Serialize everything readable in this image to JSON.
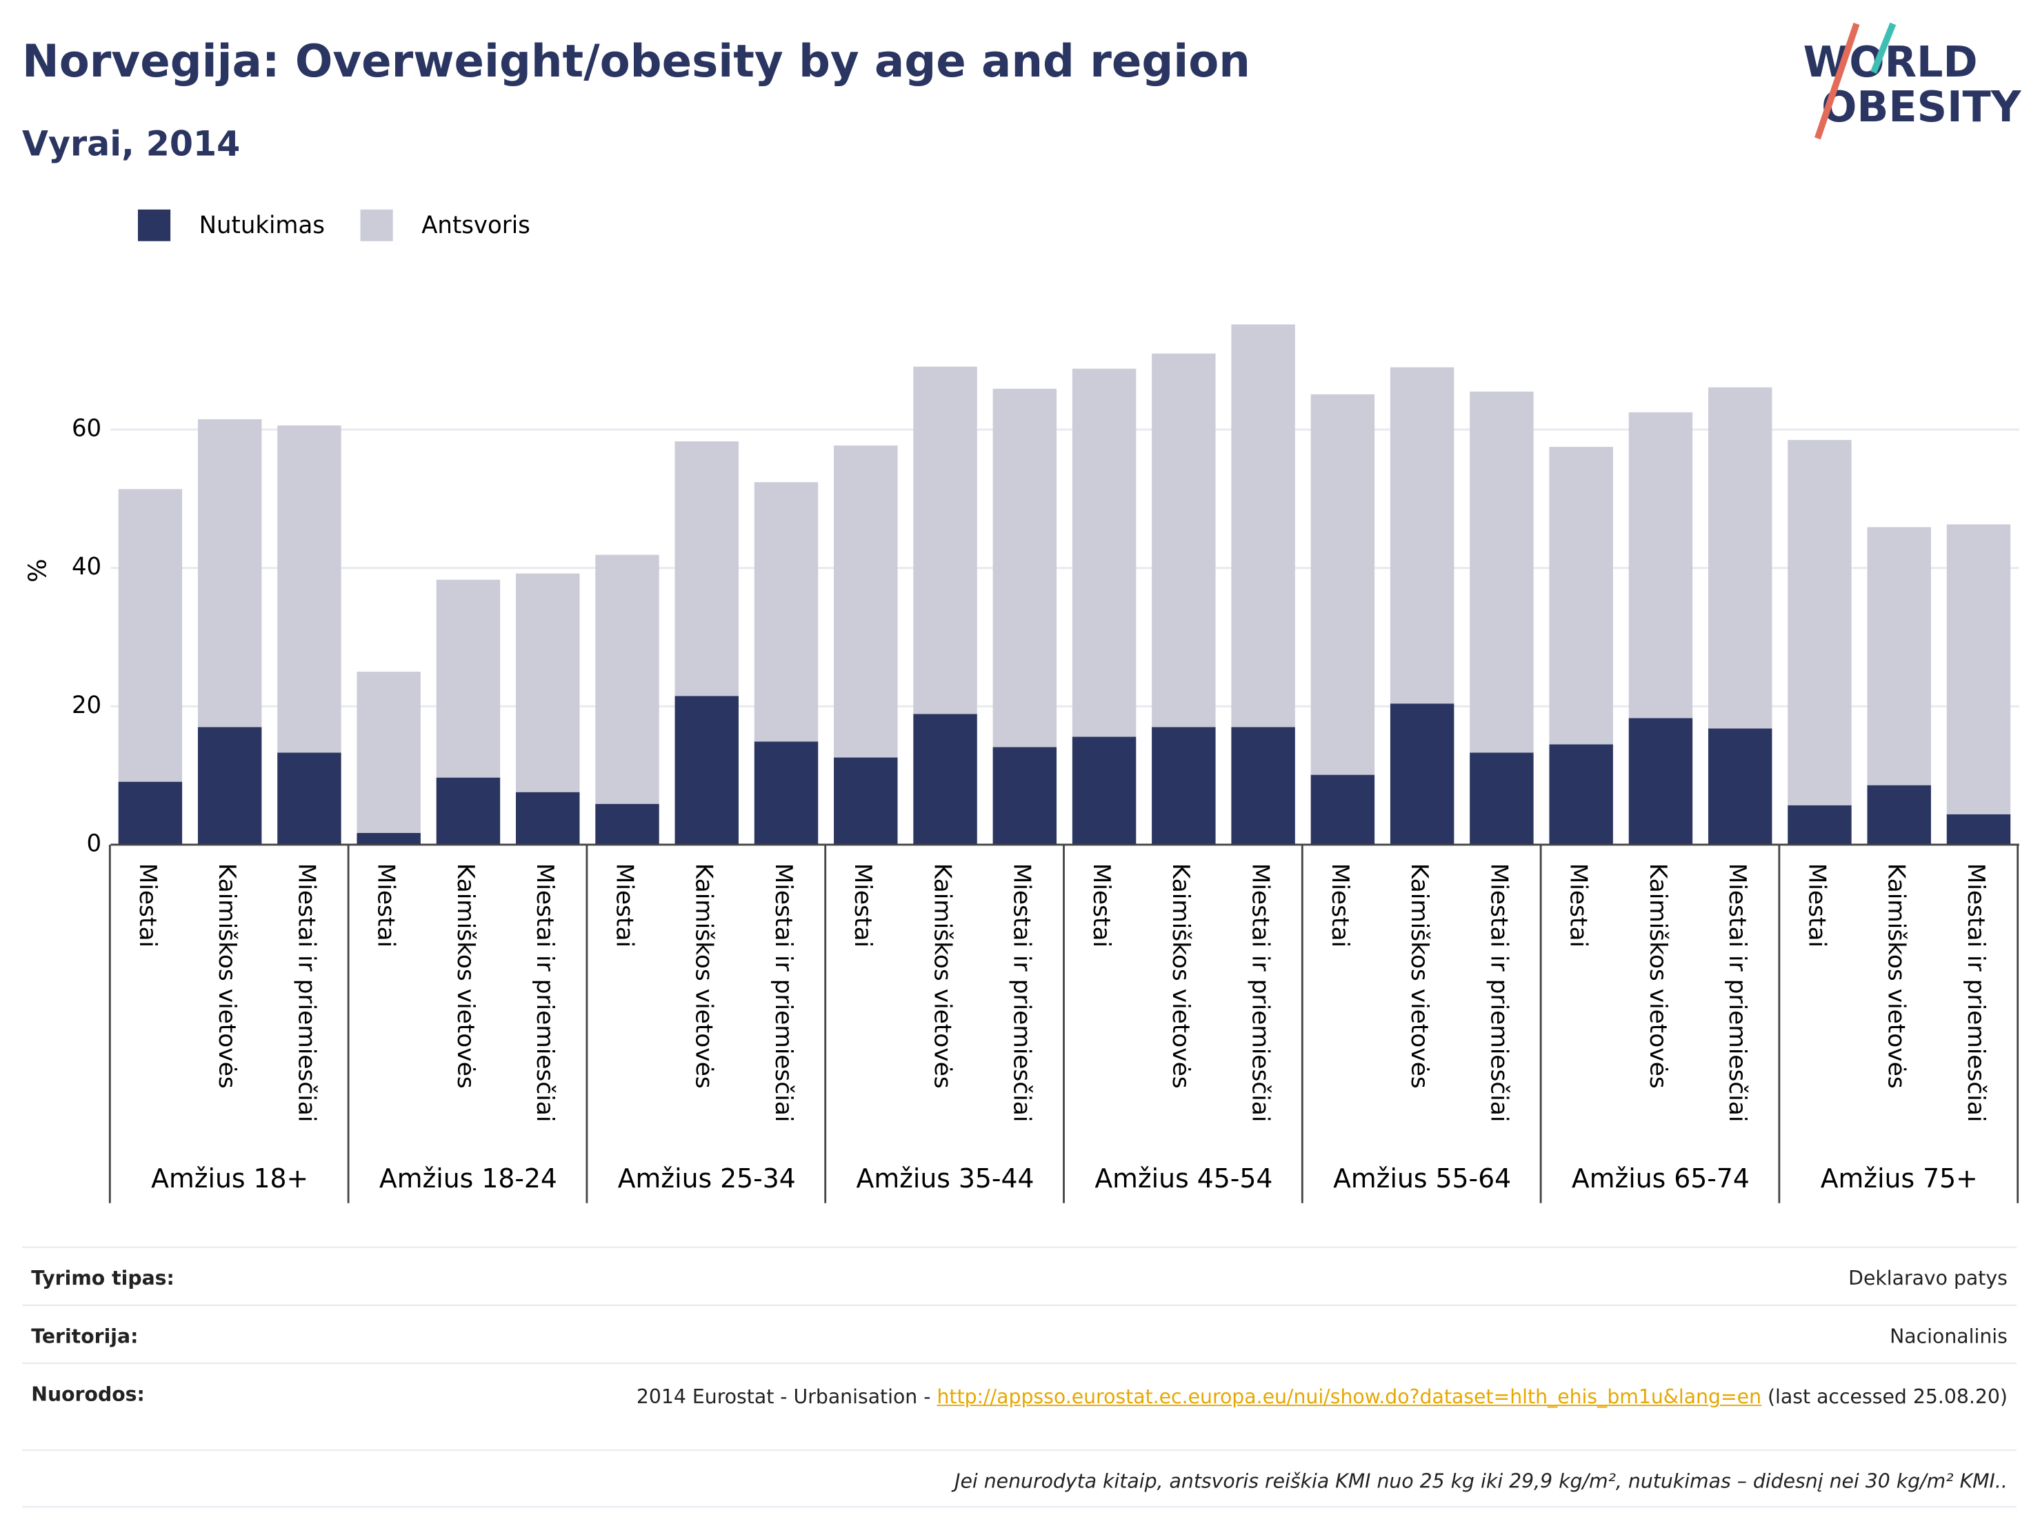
{
  "logo": [
    "WORLD",
    "OBESITY"
  ],
  "chart_data": {
    "type": "stacked_bar",
    "title": "Norvegija: Overweight/obesity by age and region",
    "subtitle": "Vyrai, 2014",
    "y_label": "%",
    "groups": [
      "Amžius 18+",
      "Amžius 18-24",
      "Amžius 25-34",
      "Amžius 35-44",
      "Amžius 45-54",
      "Amžius 55-64",
      "Amžius 65-74",
      "Amžius 75+"
    ],
    "categories": [
      "Miestai",
      "Kaimiškos vietovės",
      "Miestai ir priemiesčiai",
      "Miestai",
      "Kaimiškos vietovės",
      "Miestai ir priemiesčiai",
      "Miestai",
      "Kaimiškos vietovės",
      "Miestai ir priemiesčiai",
      "Miestai",
      "Kaimiškos vietovės",
      "Miestai ir priemiesčiai",
      "Miestai",
      "Kaimiškos vietovės",
      "Miestai ir priemiesčiai",
      "Miestai",
      "Kaimiškos vietovės",
      "Miestai ir priemiesčiai",
      "Miestai",
      "Kaimiškos vietovės",
      "Miestai ir priemiesčiai",
      "Miestai",
      "Kaimiškos vietovės",
      "Miestai ir priemiesčiai"
    ],
    "series": [
      {
        "name": "Nutukimas",
        "color": "#2a3561",
        "values": [
          9.1,
          17.0,
          13.3,
          1.7,
          9.7,
          7.6,
          5.9,
          21.5,
          14.9,
          12.6,
          18.9,
          14.1,
          15.6,
          17.0,
          17.0,
          10.1,
          20.4,
          13.3,
          14.5,
          18.3,
          16.8,
          5.7,
          8.6,
          4.4
        ]
      },
      {
        "name": "Antsvoris",
        "color": "#cbccd8",
        "values": [
          42.3,
          44.5,
          47.3,
          23.3,
          28.6,
          31.6,
          36.0,
          36.8,
          37.5,
          45.1,
          50.2,
          51.8,
          53.2,
          54.0,
          58.2,
          55.0,
          48.6,
          52.2,
          43.0,
          44.2,
          49.3,
          52.8,
          37.3,
          41.9
        ]
      }
    ],
    "ylim": [
      0,
      80
    ],
    "yticks": [
      0,
      20,
      40,
      60
    ],
    "grid": true,
    "legend": "top-left"
  },
  "footer": {
    "rows": [
      {
        "label": "Tyrimo tipas:",
        "value": "Deklaravo patys"
      },
      {
        "label": "Teritorija:",
        "value": "Nacionalinis"
      }
    ],
    "source": {
      "label": "Nuorodos:",
      "prefix": "2014 Eurostat - Urbanisation - ",
      "link": "http://appsso.eurostat.ec.europa.eu/nui/show.do?dataset=hlth_ehis_bm1u&lang=en",
      "suffix": " (last accessed 25.08.20)"
    },
    "note": "Jei nenurodyta kitaip, antsvoris reiškia KMI nuo 25 kg iki 29,9 kg/m², nutukimas – didesnį nei 30 kg/m² KMI.."
  }
}
